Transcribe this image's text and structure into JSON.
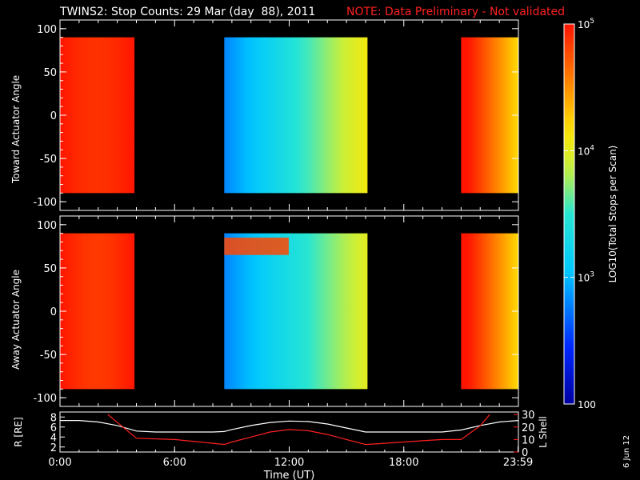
{
  "header": {
    "title": "TWINS2: Stop Counts: 29 Mar (day  88), 2011",
    "note": "NOTE: Data Preliminary - Not validated"
  },
  "date_stamp": "6 Jun 12",
  "colors": {
    "background": "#000000",
    "note": "#ff2020",
    "r_line": "#ffffff",
    "l_shell_line": "#ff2020"
  },
  "colorbar": {
    "label": "LOG10(Total Stops per Scan)",
    "scale": "log",
    "ticks": [
      {
        "value": 100,
        "label": "100"
      },
      {
        "value": 1000,
        "label": "10^3"
      },
      {
        "value": 10000,
        "label": "10^4"
      },
      {
        "value": 100000,
        "label": "10^5"
      }
    ]
  },
  "chart_data": [
    {
      "type": "heatmap",
      "id": "toward",
      "ylabel": "Toward Actuator Angle",
      "ylim": [
        -110,
        110
      ],
      "yticks": [
        -100,
        -50,
        0,
        50,
        100
      ],
      "xlim_hours": [
        0,
        24
      ],
      "data_angle_range": [
        -90,
        90
      ],
      "blocks": [
        {
          "start_hour": 0.0,
          "end_hour": 3.9,
          "log_counts_range": [
            4.6,
            5.0
          ],
          "trend": "constant-high"
        },
        {
          "start_hour": 8.6,
          "end_hour": 16.1,
          "log_counts_range": [
            2.8,
            4.1
          ],
          "trend": "rising-with-time"
        },
        {
          "start_hour": 21.0,
          "end_hour": 24.0,
          "log_counts_range": [
            4.2,
            5.0
          ],
          "trend": "high-edge-then-decreasing"
        }
      ]
    },
    {
      "type": "heatmap",
      "id": "away",
      "ylabel": "Away Actuator Angle",
      "ylim": [
        -110,
        110
      ],
      "yticks": [
        -100,
        -50,
        0,
        50,
        100
      ],
      "xlim_hours": [
        0,
        24
      ],
      "data_angle_range": [
        -90,
        90
      ],
      "blocks": [
        {
          "start_hour": 0.0,
          "end_hour": 3.9,
          "log_counts_range": [
            4.5,
            5.0
          ],
          "trend": "constant-high"
        },
        {
          "start_hour": 8.6,
          "end_hour": 16.1,
          "log_counts_range": [
            2.8,
            4.0
          ],
          "trend": "rising-with-time",
          "band_angle_range": [
            65,
            85
          ],
          "band_log_counts": 4.8
        },
        {
          "start_hour": 21.0,
          "end_hour": 24.0,
          "log_counts_range": [
            4.2,
            5.0
          ],
          "trend": "high-edge-then-decreasing"
        }
      ]
    },
    {
      "type": "line",
      "id": "ephemeris",
      "ylabel_left": "R [RE]",
      "ylabel_right": "L Shell",
      "xlabel": "Time (UT)",
      "xlim_hours": [
        0,
        24
      ],
      "xticks": [
        {
          "hour": 0,
          "label": "0:00"
        },
        {
          "hour": 6,
          "label": "6:00"
        },
        {
          "hour": 12,
          "label": "12:00"
        },
        {
          "hour": 18,
          "label": "18:00"
        },
        {
          "hour": 23.983,
          "label": "23:59"
        }
      ],
      "ylim_left": [
        1,
        9
      ],
      "yticks_left": [
        2,
        4,
        6,
        8
      ],
      "ylim_right": [
        0,
        32
      ],
      "yticks_right": [
        0,
        10,
        20,
        30
      ],
      "series": [
        {
          "name": "R [RE]",
          "axis": "left",
          "x": [
            0,
            1,
            2,
            3,
            4,
            5,
            6,
            7,
            8,
            8.6,
            9,
            10,
            11,
            12,
            13,
            14,
            15,
            16,
            17,
            18,
            19,
            20,
            21,
            22,
            23,
            24
          ],
          "y": [
            7.3,
            7.3,
            7.0,
            6.3,
            5.2,
            5.0,
            5.0,
            5.0,
            5.0,
            5.1,
            5.5,
            6.3,
            6.9,
            7.2,
            7.1,
            6.6,
            5.8,
            5.0,
            5.0,
            5.0,
            5.0,
            5.0,
            5.4,
            6.3,
            7.0,
            7.3
          ]
        },
        {
          "name": "L Shell",
          "axis": "right",
          "x": [
            2.5,
            4,
            6,
            8,
            8.6,
            9,
            10,
            11,
            12,
            13,
            14,
            15,
            16,
            17,
            18,
            19,
            20,
            21,
            22,
            22.5
          ],
          "y": [
            30,
            11,
            10,
            7,
            6,
            8,
            12,
            16,
            18,
            17,
            14,
            10,
            6,
            7,
            8,
            9,
            10,
            10,
            21,
            30
          ]
        }
      ]
    }
  ]
}
